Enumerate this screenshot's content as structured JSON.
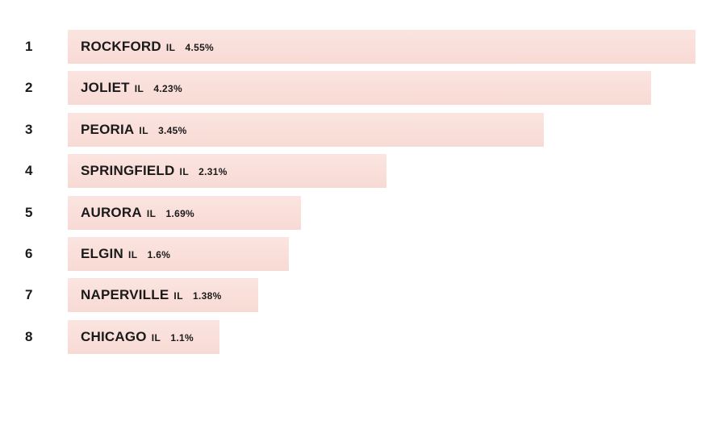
{
  "chart_data": {
    "type": "bar",
    "orientation": "horizontal",
    "title": "",
    "xlabel": "",
    "ylabel": "",
    "xlim": [
      0,
      4.55
    ],
    "grid": false,
    "legend": "none",
    "bar_color": "#f8dad4",
    "text_color": "#1a1a1a",
    "rows": [
      {
        "rank": "1",
        "city": "ROCKFORD",
        "state": "IL",
        "label": "4.55%",
        "value": 4.55
      },
      {
        "rank": "2",
        "city": "JOLIET",
        "state": "IL",
        "label": "4.23%",
        "value": 4.23
      },
      {
        "rank": "3",
        "city": "PEORIA",
        "state": "IL",
        "label": "3.45%",
        "value": 3.45
      },
      {
        "rank": "4",
        "city": "SPRINGFIELD",
        "state": "IL",
        "label": "2.31%",
        "value": 2.31
      },
      {
        "rank": "5",
        "city": "AURORA",
        "state": "IL",
        "label": "1.69%",
        "value": 1.69
      },
      {
        "rank": "6",
        "city": "ELGIN",
        "state": "IL",
        "label": "1.6%",
        "value": 1.6
      },
      {
        "rank": "7",
        "city": "NAPERVILLE",
        "state": "IL",
        "label": "1.38%",
        "value": 1.38
      },
      {
        "rank": "8",
        "city": "CHICAGO",
        "state": "IL",
        "label": "1.1%",
        "value": 1.1
      }
    ]
  }
}
